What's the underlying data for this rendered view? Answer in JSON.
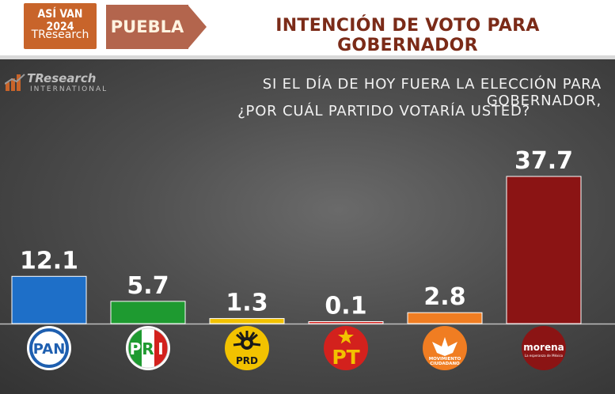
{
  "header": {
    "badge_line1": "ASÍ VAN 2024",
    "badge_line2": "TResearch",
    "state": "PUEBLA",
    "title": "INTENCIÓN DE VOTO PARA GOBERNADOR"
  },
  "logo": {
    "name": "TResearch",
    "sub": "INTERNATIONAL"
  },
  "question": {
    "line1": "SI EL DÍA DE HOY FUERA LA ELECCIÓN PARA GOBERNADOR,",
    "line2": "¿POR CUÁL PARTIDO VOTARÍA USTED?"
  },
  "party_logos": {
    "pan": "PAN",
    "pri": [
      "P",
      "R",
      "I"
    ],
    "prd": "PRD",
    "pt": "PT",
    "mc_1": "MOVIMIENTO",
    "mc_2": "CIUDADANO",
    "morena": "morena",
    "morena_sub": "La esperanza de México"
  },
  "colors": {
    "PAN": "#1e6fc8",
    "PRI": "#1e9a30",
    "PRD": "#f2c200",
    "PT": "#d3211d",
    "MC": "#f07d22",
    "MORENA": "#8b1414"
  },
  "chart_data": {
    "type": "bar",
    "categories": [
      "PAN",
      "PRI",
      "PRD",
      "PT",
      "MC",
      "MORENA"
    ],
    "values": [
      12.1,
      5.7,
      1.3,
      0.1,
      2.8,
      37.7
    ],
    "labels": [
      "12.1",
      "5.7",
      "1.3",
      "0.1",
      "2.8",
      "37.7"
    ],
    "ylim": [
      0,
      40
    ],
    "grid": false
  }
}
